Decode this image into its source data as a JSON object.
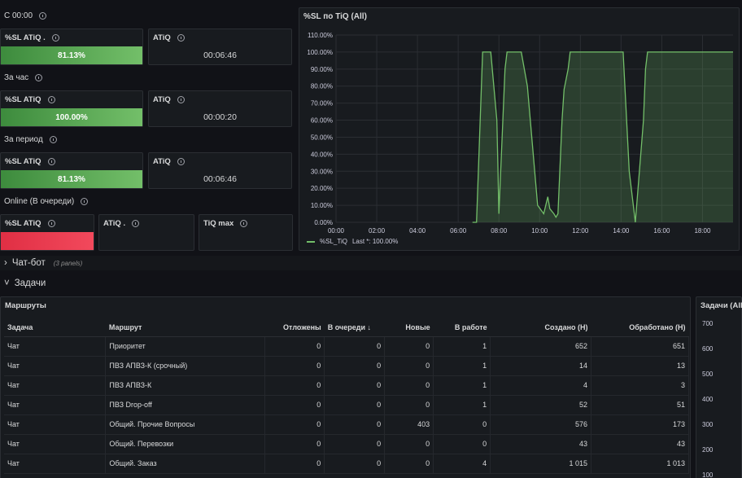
{
  "rows": {
    "since_midnight": "С 00:00",
    "hour": "За час",
    "period": "За период",
    "online": "Online (В очереди)"
  },
  "stats": [
    {
      "sl_title": "%SL ATiQ .",
      "sl_value": "81.13%",
      "atiq_title": "ATiQ",
      "atiq_value": "00:06:46"
    },
    {
      "sl_title": "%SL ATiQ",
      "sl_value": "100.00%",
      "atiq_title": "ATiQ",
      "atiq_value": "00:00:20"
    },
    {
      "sl_title": "%SL ATiQ",
      "sl_value": "81.13%",
      "atiq_title": "ATiQ",
      "atiq_value": "00:06:46"
    }
  ],
  "online": {
    "sl_title": "%SL ATiQ",
    "atiq_title": "ATiQ .",
    "tiq_title": "TiQ max"
  },
  "sl_chart": {
    "title": "%SL по TiQ (All)",
    "legend_label": "%SL_TiQ",
    "legend_last": "Last *: 100.00%",
    "color": "#73bf69"
  },
  "sections": {
    "chatbot": "Чат-бот",
    "chatbot_sub": "(3 panels)",
    "tasks": "Задачи"
  },
  "routes": {
    "title": "Маршруты",
    "columns": [
      "Задача",
      "Маршрут",
      "Отложены",
      "В очереди",
      "Новые",
      "В работе",
      "Создано (Н)",
      "Обработано (Н)"
    ],
    "sort_indicator": "↓",
    "rows": [
      [
        "Чат",
        "Приоритет",
        "0",
        "0",
        "0",
        "1",
        "652",
        "651"
      ],
      [
        "Чат",
        "ПВЗ АПВЗ-К (срочный)",
        "0",
        "0",
        "0",
        "1",
        "14",
        "13"
      ],
      [
        "Чат",
        "ПВЗ АПВЗ-К",
        "0",
        "0",
        "0",
        "1",
        "4",
        "3"
      ],
      [
        "Чат",
        "ПВЗ Drop-off",
        "0",
        "0",
        "0",
        "1",
        "52",
        "51"
      ],
      [
        "Чат",
        "Общий. Прочие Вопросы",
        "0",
        "0",
        "403",
        "0",
        "576",
        "173"
      ],
      [
        "Чат",
        "Общий. Перевозки",
        "0",
        "0",
        "0",
        "0",
        "43",
        "43"
      ],
      [
        "Чат",
        "Общий. Заказ",
        "0",
        "0",
        "0",
        "4",
        "1 015",
        "1 013"
      ]
    ]
  },
  "tasks_chart": {
    "title": "Задачи (All",
    "y_ticks": [
      "700",
      "600",
      "500",
      "400",
      "300",
      "200",
      "100"
    ]
  },
  "chart_data": {
    "type": "area",
    "title": "%SL по TiQ (All)",
    "xlabel": "",
    "ylabel": "",
    "x_ticks": [
      "00:00",
      "02:00",
      "04:00",
      "06:00",
      "08:00",
      "10:00",
      "12:00",
      "14:00",
      "16:00",
      "18:00"
    ],
    "y_ticks": [
      "0.00%",
      "10.00%",
      "20.00%",
      "30.00%",
      "40.00%",
      "50.00%",
      "60.00%",
      "70.00%",
      "80.00%",
      "90.00%",
      "100.00%",
      "110.00%"
    ],
    "ylim": [
      0,
      110
    ],
    "grid": true,
    "legend": "bottom-left",
    "series": [
      {
        "name": "%SL_TiQ",
        "x": [
          6.7,
          6.9,
          7.2,
          7.6,
          7.9,
          8.0,
          8.3,
          8.4,
          9.1,
          9.4,
          9.9,
          10.2,
          10.4,
          10.5,
          10.7,
          10.8,
          10.9,
          11.1,
          11.2,
          11.4,
          11.5,
          11.8,
          12.2,
          14.1,
          14.4,
          14.7,
          15.1,
          15.2,
          15.3,
          19.5
        ],
        "y": [
          0,
          0,
          100,
          100,
          60,
          5,
          90,
          100,
          100,
          80,
          10,
          5,
          15,
          8,
          5,
          3,
          5,
          60,
          78,
          90,
          100,
          100,
          100,
          100,
          30,
          0,
          60,
          90,
          100,
          100
        ]
      }
    ]
  }
}
